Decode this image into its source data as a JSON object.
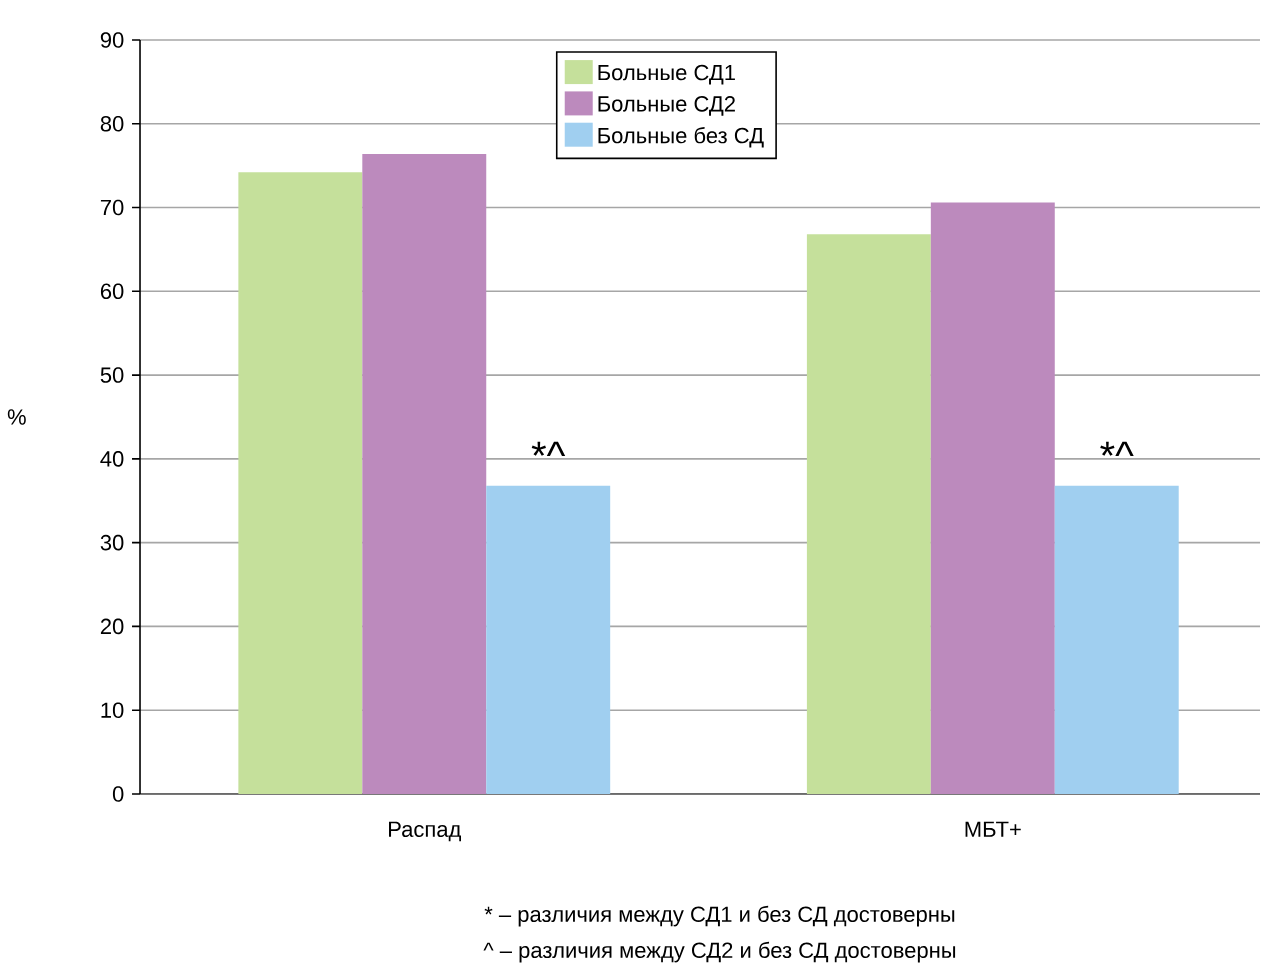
{
  "chart_data": {
    "type": "bar",
    "ylabel": "%",
    "categories": [
      "Распад",
      "МБТ+"
    ],
    "series": [
      {
        "name": "Больные СД1",
        "color": "#c5e09b",
        "values": [
          74.2,
          66.8
        ]
      },
      {
        "name": "Больные СД2",
        "color": "#bc8abd",
        "values": [
          76.4,
          70.6
        ]
      },
      {
        "name": "Больные без СД",
        "color": "#a0cff0",
        "values": [
          36.8,
          36.8
        ]
      }
    ],
    "ylim": [
      0,
      90
    ],
    "yticks": [
      0,
      10,
      20,
      30,
      40,
      50,
      60,
      70,
      80,
      90
    ],
    "grid": "y",
    "legend": "top",
    "annotations": [
      "*^",
      "*^",
      "* – различия между СД1 и без СД достоверны",
      "^ – различия между СД2 и без СД достоверны"
    ]
  }
}
